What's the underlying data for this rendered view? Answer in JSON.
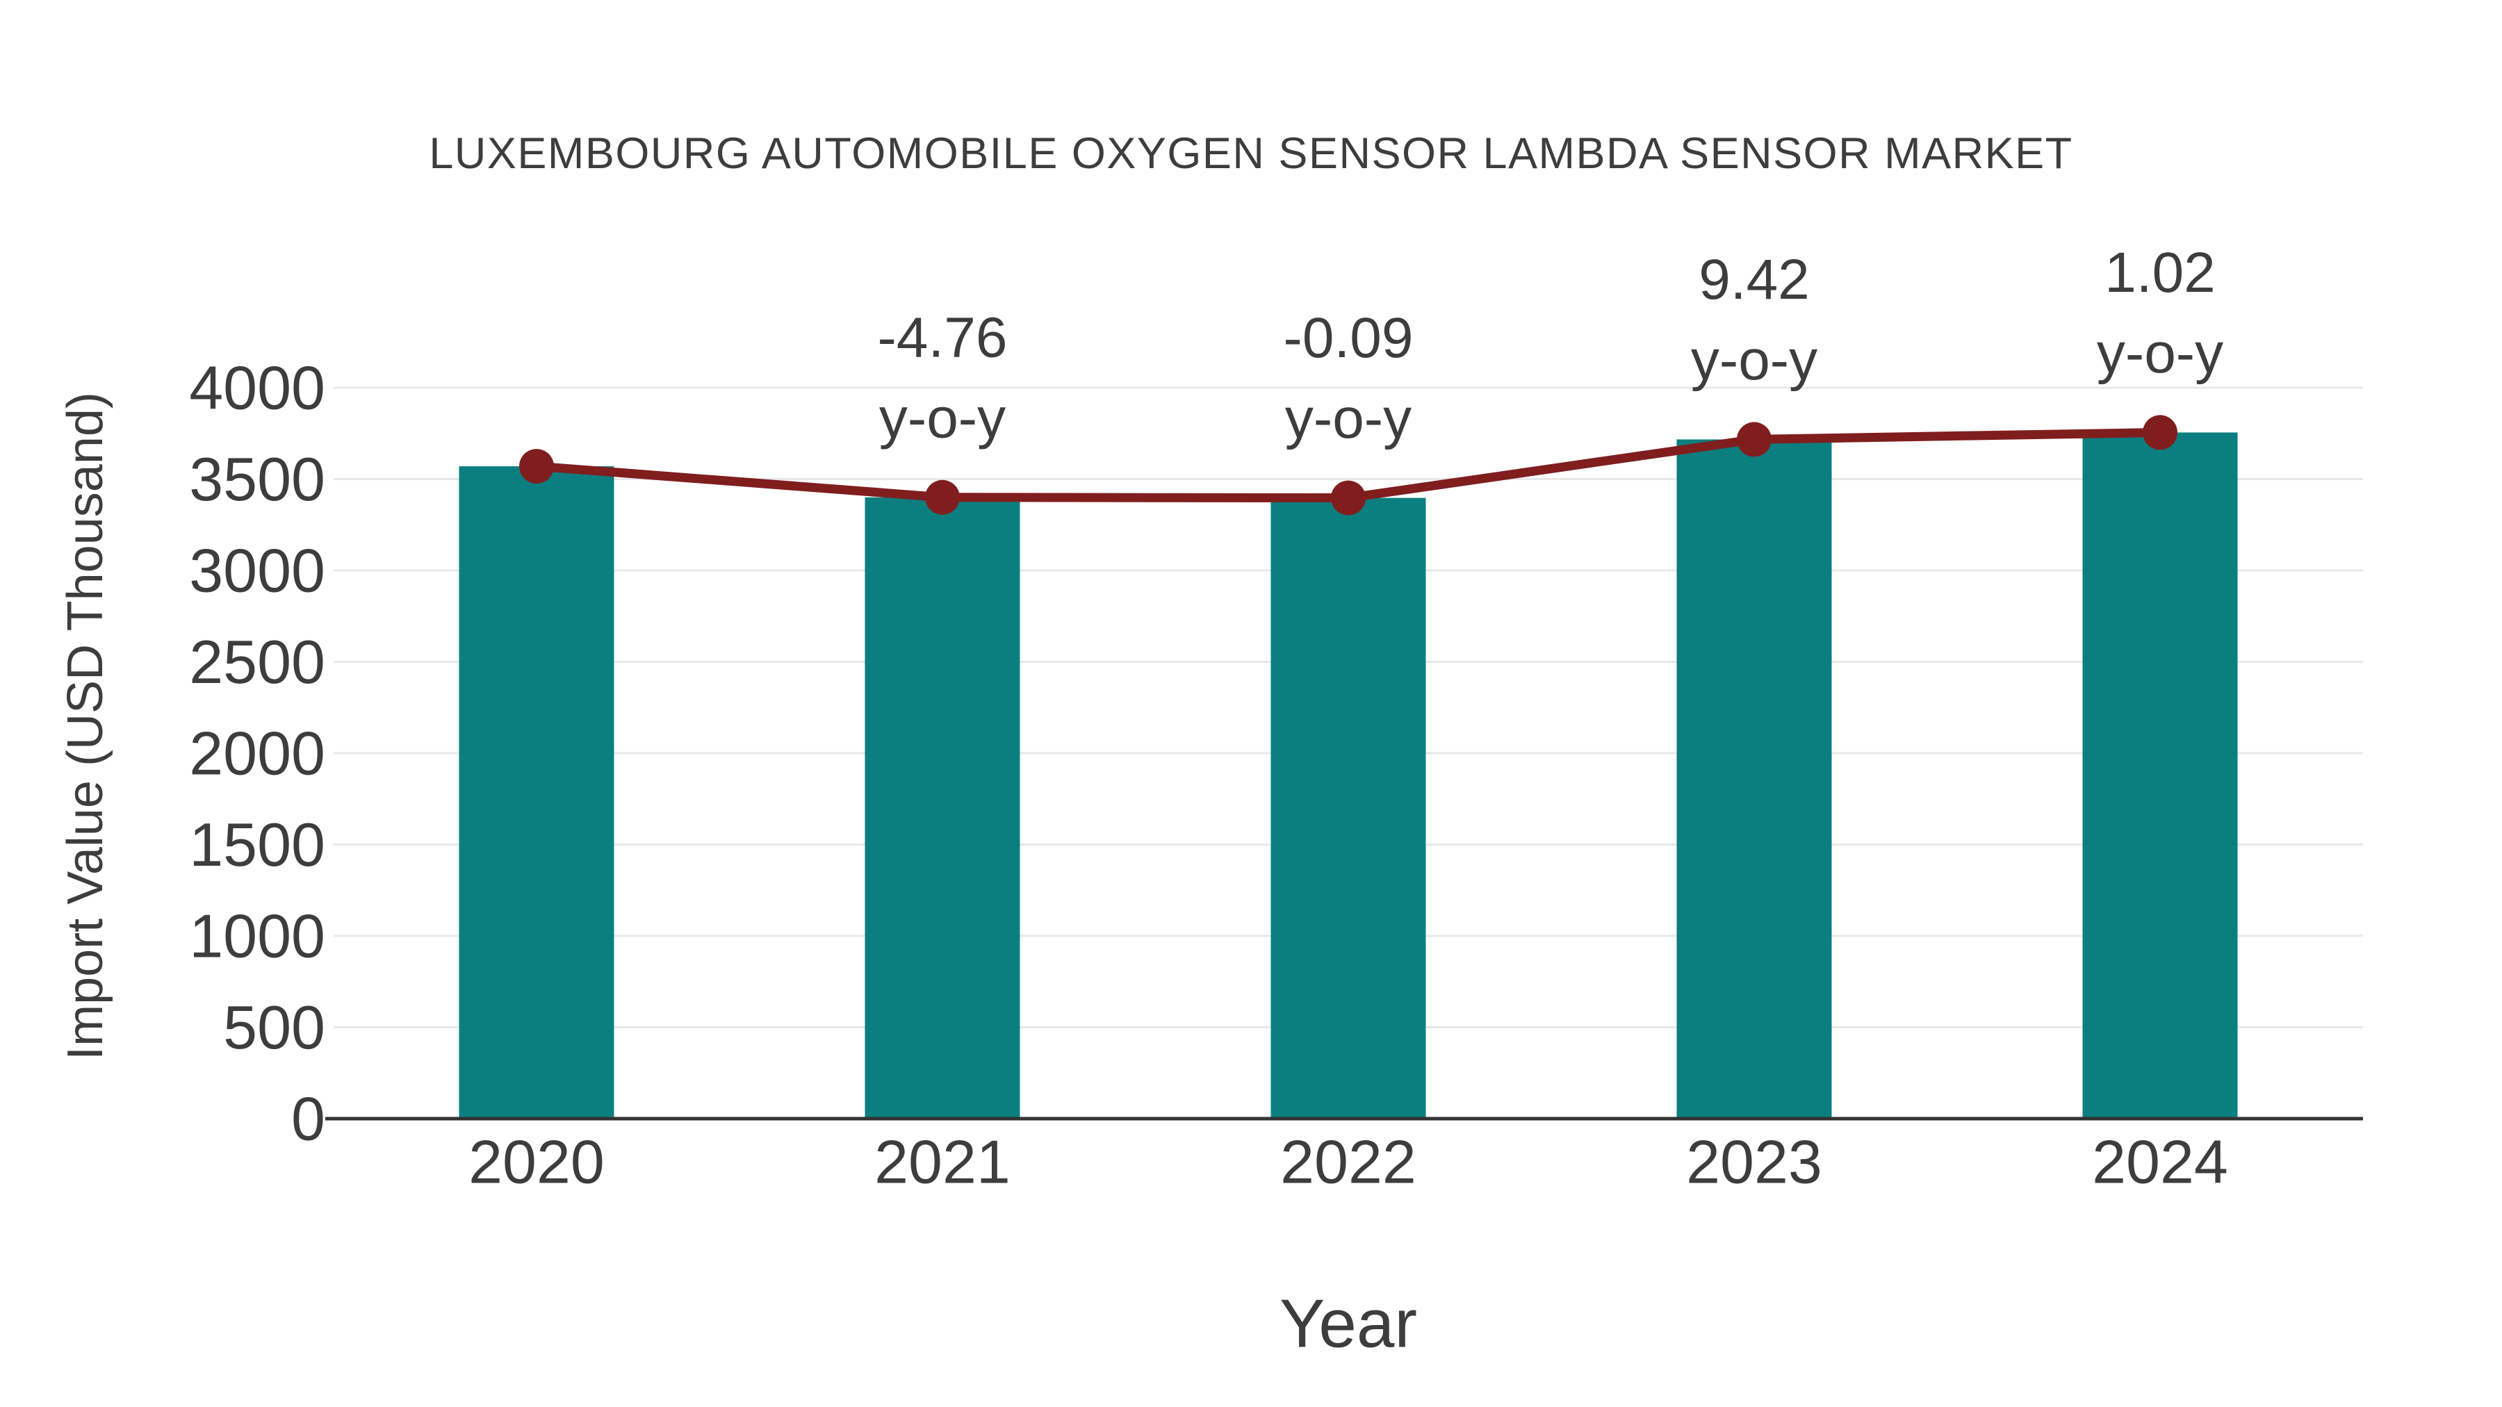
{
  "chart": {
    "title": "LUXEMBOURG AUTOMOBILE OXYGEN SENSOR LAMBDA SENSOR MARKET",
    "xlabel": "Year",
    "ylabel": "Import Value (USD Thousand)"
  },
  "chart_data": {
    "type": "bar",
    "title": "LUXEMBOURG AUTOMOBILE OXYGEN SENSOR LAMBDA SENSOR MARKET",
    "xlabel": "Year",
    "ylabel": "Import Value (USD Thousand)",
    "categories": [
      "2020",
      "2021",
      "2022",
      "2023",
      "2024"
    ],
    "series": [
      {
        "name": "Import Value bars",
        "type": "bar",
        "values": [
          3570,
          3400,
          3397,
          3717,
          3755
        ]
      },
      {
        "name": "Import Value trend line with markers",
        "type": "line",
        "values": [
          3570,
          3400,
          3397,
          3717,
          3755
        ]
      }
    ],
    "annotations": [
      {
        "category": "2021",
        "value": "-4.76",
        "unit": "y-o-y"
      },
      {
        "category": "2022",
        "value": "-0.09",
        "unit": "y-o-y"
      },
      {
        "category": "2023",
        "value": "9.42",
        "unit": "y-o-y"
      },
      {
        "category": "2024",
        "value": "1.02",
        "unit": "y-o-y"
      }
    ],
    "yticks": [
      0,
      500,
      1000,
      1500,
      2000,
      2500,
      3000,
      3500,
      4000
    ],
    "ylim": [
      0,
      4000
    ],
    "grid": true,
    "legend": "none",
    "colors": {
      "bar": "#0B7F80",
      "line": "#801E1E",
      "text": "#3D3D3D",
      "grid": "#E8E8E8",
      "axis": "#333333",
      "background": "#FFFFFF"
    }
  }
}
